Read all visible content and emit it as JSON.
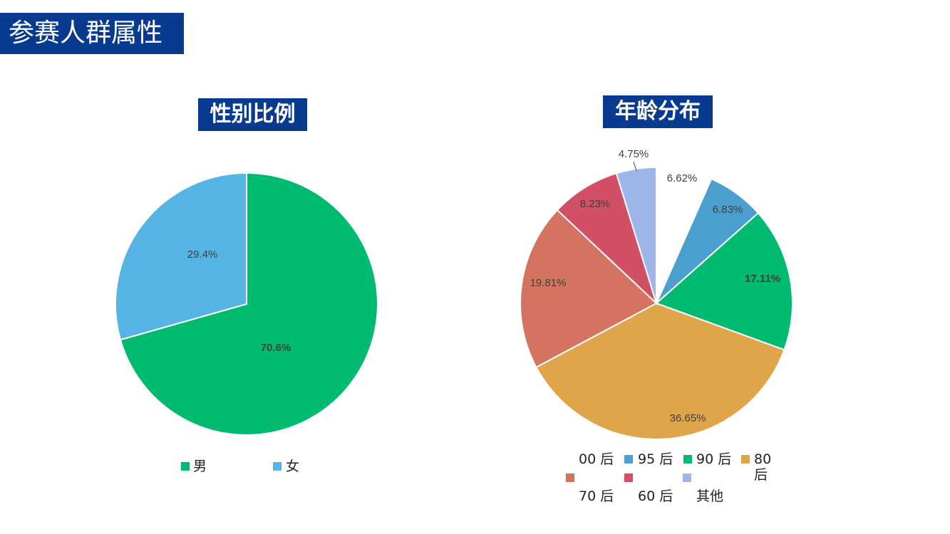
{
  "page_title": "参赛人群属性",
  "chart_data": [
    {
      "type": "pie",
      "title": "性别比例",
      "categories": [
        "男",
        "女"
      ],
      "values": [
        70.6,
        29.4
      ],
      "labels": [
        "70.6%",
        "29.4%"
      ],
      "colors": [
        "#00bb6f",
        "#55b4e3"
      ],
      "legend": "bottom"
    },
    {
      "type": "pie",
      "title": "年龄分布",
      "categories": [
        "00后",
        "95后",
        "90后",
        "80后",
        "70后",
        "60后",
        "其他"
      ],
      "legend_labels": [
        "00 后",
        "95 后",
        "90 后",
        "80 后",
        "70 后",
        "60 后",
        "其他"
      ],
      "values": [
        6.62,
        6.83,
        17.11,
        36.65,
        19.81,
        8.23,
        4.75
      ],
      "labels": [
        "6.62%",
        "6.83%",
        "17.11%",
        "36.65%",
        "19.81%",
        "8.23%",
        "4.75%"
      ],
      "colors": [
        "#ffffff",
        "#4a9fcf",
        "#00bb6f",
        "#e0a54b",
        "#d47460",
        "#d25065",
        "#9eb5ea"
      ],
      "legend": "bottom"
    }
  ]
}
